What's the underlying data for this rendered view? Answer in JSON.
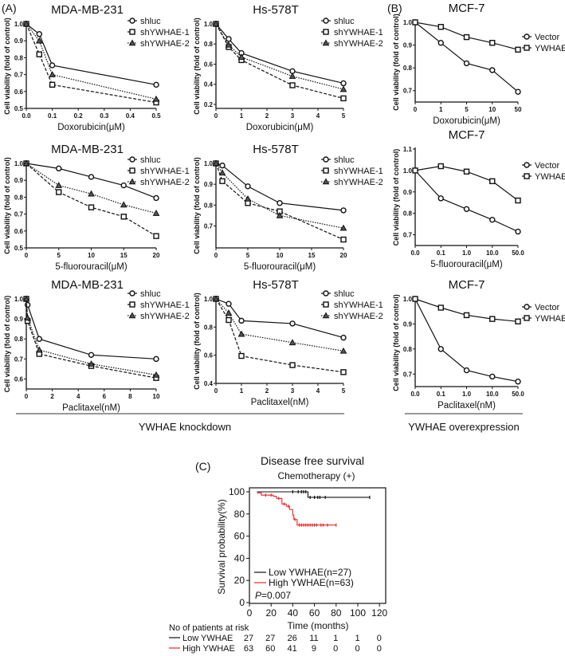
{
  "panel_labels": {
    "a": "(A)",
    "b": "(B)",
    "c": "(C)"
  },
  "group_labels": {
    "knockdown": "YWHAE knockdown",
    "overexpression": "YWHAE overexpression"
  },
  "chart_data": [
    {
      "type": "line",
      "title": "MDA-MB-231",
      "xlabel": "Doxorubicin(μM)",
      "ylabel": "Cell viability (fold of control)",
      "x": [
        0,
        0.05,
        0.1,
        0.5
      ],
      "xlim": [
        0,
        0.5
      ],
      "xticks": [
        "0.0",
        "0.1",
        "0.2",
        "0.3",
        "0.4",
        "0.5"
      ],
      "xtick_values": [
        0,
        0.1,
        0.2,
        0.3,
        0.4,
        0.5
      ],
      "ylim": [
        0.5,
        1.0
      ],
      "yticks": [
        "0.5",
        "0.6",
        "0.7",
        "0.8",
        "0.9",
        "1.0"
      ],
      "ytick_values": [
        0.5,
        0.6,
        0.7,
        0.8,
        0.9,
        1.0
      ],
      "series": [
        {
          "name": "shluc",
          "values": [
            1,
            0.94,
            0.755,
            0.64
          ]
        },
        {
          "name": "shYWHAE-1",
          "values": [
            1,
            0.82,
            0.64,
            0.535
          ]
        },
        {
          "name": "shYWHAE-2",
          "values": [
            1,
            0.9,
            0.7,
            0.555
          ]
        }
      ]
    },
    {
      "type": "line",
      "title": "Hs-578T",
      "xlabel": "Doxorubicin(μM)",
      "ylabel": "Cell viability (fold of control)",
      "x": [
        0,
        0.5,
        1,
        3,
        5
      ],
      "xlim": [
        0,
        5
      ],
      "xticks": [
        "0",
        "1",
        "2",
        "3",
        "4",
        "5"
      ],
      "xtick_values": [
        0,
        1,
        2,
        3,
        4,
        5
      ],
      "ylim": [
        0.16,
        1.0
      ],
      "yticks": [
        "0.2",
        "0.4",
        "0.6",
        "0.8",
        "1.0"
      ],
      "ytick_values": [
        0.2,
        0.4,
        0.6,
        0.8,
        1.0
      ],
      "series": [
        {
          "name": "shluc",
          "values": [
            1,
            0.85,
            0.71,
            0.53,
            0.41
          ]
        },
        {
          "name": "shYWHAE-1",
          "values": [
            1,
            0.77,
            0.64,
            0.39,
            0.26
          ]
        },
        {
          "name": "shYWHAE-2",
          "values": [
            1,
            0.79,
            0.67,
            0.48,
            0.35
          ]
        }
      ]
    },
    {
      "type": "line",
      "title": "MCF-7",
      "xlabel": "Doxorubicin(μM)",
      "ylabel": "Cell viability (fold of control)",
      "categorical": true,
      "xticks": [
        "0",
        "1",
        "5",
        "10",
        "50"
      ],
      "ylim": [
        0.65,
        1.0
      ],
      "yticks": [
        "0.7",
        "0.8",
        "0.9",
        "1.0"
      ],
      "ytick_values": [
        0.7,
        0.8,
        0.9,
        1.0
      ],
      "series": [
        {
          "name": "Vector",
          "values": [
            1,
            0.91,
            0.82,
            0.79,
            0.695
          ]
        },
        {
          "name": "YWHAE",
          "values": [
            1,
            0.98,
            0.935,
            0.91,
            0.88
          ]
        }
      ]
    },
    {
      "type": "line",
      "title": "MDA-MB-231",
      "xlabel": "5-fluorouracil(μM)",
      "ylabel": "Cell viability (fold of control)",
      "x": [
        0,
        5,
        10,
        15,
        20
      ],
      "xlim": [
        0,
        20
      ],
      "xticks": [
        "0",
        "5",
        "10",
        "15",
        "20"
      ],
      "xtick_values": [
        0,
        5,
        10,
        15,
        20
      ],
      "ylim": [
        0.5,
        1.0
      ],
      "yticks": [
        "0.5",
        "0.6",
        "0.7",
        "0.8",
        "0.9",
        "1.0"
      ],
      "ytick_values": [
        0.5,
        0.6,
        0.7,
        0.8,
        0.9,
        1.0
      ],
      "series": [
        {
          "name": "shluc",
          "values": [
            1,
            0.97,
            0.92,
            0.87,
            0.795
          ]
        },
        {
          "name": "shYWHAE-1",
          "values": [
            1,
            0.83,
            0.74,
            0.685,
            0.57
          ]
        },
        {
          "name": "shYWHAE-2",
          "values": [
            1,
            0.87,
            0.82,
            0.755,
            0.705
          ]
        }
      ]
    },
    {
      "type": "line",
      "title": "Hs-578T",
      "xlabel": "5-fluorouracil(μM)",
      "ylabel": "Cell viability (fold of control)",
      "x": [
        0,
        1,
        5,
        10,
        20
      ],
      "xlim": [
        0,
        20
      ],
      "xticks": [
        "0",
        "5",
        "10",
        "15",
        "20"
      ],
      "xtick_values": [
        0,
        5,
        10,
        15,
        20
      ],
      "ylim": [
        0.595,
        1.0
      ],
      "yticks": [
        "0.7",
        "0.8",
        "0.9",
        "1.0"
      ],
      "ytick_values": [
        0.7,
        0.8,
        0.9,
        1.0
      ],
      "series": [
        {
          "name": "shluc",
          "values": [
            1,
            0.99,
            0.89,
            0.81,
            0.775
          ]
        },
        {
          "name": "shYWHAE-1",
          "values": [
            1,
            0.915,
            0.81,
            0.77,
            0.635
          ]
        },
        {
          "name": "shYWHAE-2",
          "values": [
            1,
            0.955,
            0.83,
            0.75,
            0.69
          ]
        }
      ]
    },
    {
      "type": "line",
      "title": "MCF-7",
      "xlabel": "5-fluorouracil(μM)",
      "ylabel": "Cell viability (fold of control)",
      "categorical": true,
      "xticks": [
        "0.0",
        "0.1",
        "1.0",
        "10.0",
        "50.0"
      ],
      "ylim": [
        0.65,
        1.1
      ],
      "yticks": [
        "0.7",
        "0.8",
        "0.9",
        "1.0",
        "1.1"
      ],
      "ytick_values": [
        0.7,
        0.8,
        0.9,
        1.0,
        1.1
      ],
      "series": [
        {
          "name": "Vector",
          "values": [
            1,
            0.87,
            0.82,
            0.77,
            0.715
          ]
        },
        {
          "name": "YWHAE",
          "values": [
            1,
            1.02,
            0.995,
            0.95,
            0.86
          ]
        }
      ]
    },
    {
      "type": "line",
      "title": "MDA-MB-231",
      "xlabel": "Paclitaxel(nM)",
      "ylabel": "Cell viability (fold of control)",
      "x": [
        0,
        0.1,
        1,
        5,
        10
      ],
      "xlim": [
        0,
        10
      ],
      "xticks": [
        "0",
        "2",
        "4",
        "6",
        "8",
        "10"
      ],
      "xtick_values": [
        0,
        2,
        4,
        6,
        8,
        10
      ],
      "ylim": [
        0.55,
        1.0
      ],
      "yticks": [
        "0.6",
        "0.7",
        "0.8",
        "0.9",
        "1.0"
      ],
      "ytick_values": [
        0.6,
        0.7,
        0.8,
        0.9,
        1.0
      ],
      "series": [
        {
          "name": "shluc",
          "values": [
            1,
            0.97,
            0.8,
            0.72,
            0.7
          ]
        },
        {
          "name": "shYWHAE-1",
          "values": [
            1,
            0.89,
            0.725,
            0.665,
            0.605
          ]
        },
        {
          "name": "shYWHAE-2",
          "values": [
            1,
            0.905,
            0.745,
            0.675,
            0.62
          ]
        }
      ]
    },
    {
      "type": "line",
      "title": "Hs-578T",
      "xlabel": "Paclitaxel(nM)",
      "ylabel": "Cell viability (fold of control)",
      "x": [
        0,
        0.5,
        1,
        3,
        5
      ],
      "xlim": [
        0,
        5
      ],
      "xticks": [
        "0",
        "1",
        "2",
        "3",
        "4",
        "5"
      ],
      "xtick_values": [
        0,
        1,
        2,
        3,
        4,
        5
      ],
      "ylim": [
        0.4,
        1.0
      ],
      "yticks": [
        "0.4",
        "0.6",
        "0.8",
        "1.0"
      ],
      "ytick_values": [
        0.4,
        0.6,
        0.8,
        1.0
      ],
      "series": [
        {
          "name": "shluc",
          "values": [
            1,
            0.965,
            0.845,
            0.825,
            0.725
          ]
        },
        {
          "name": "shYWHAE-1",
          "values": [
            1,
            0.85,
            0.595,
            0.53,
            0.48
          ]
        },
        {
          "name": "shYWHAE-2",
          "values": [
            1,
            0.9,
            0.75,
            0.69,
            0.63
          ]
        }
      ]
    },
    {
      "type": "line",
      "title": "MCF-7",
      "xlabel": "Paclitaxel(nM)",
      "ylabel": "Cell viability (fold of control)",
      "categorical": true,
      "xticks": [
        "0.0",
        "0.1",
        "1.0",
        "10.0",
        "50.0"
      ],
      "ylim": [
        0.65,
        1.0
      ],
      "yticks": [
        "0.7",
        "0.8",
        "0.9",
        "1.0"
      ],
      "ytick_values": [
        0.7,
        0.8,
        0.9,
        1.0
      ],
      "series": [
        {
          "name": "Vector",
          "values": [
            1,
            0.8,
            0.715,
            0.69,
            0.67
          ]
        },
        {
          "name": "YWHAE",
          "values": [
            1,
            0.965,
            0.935,
            0.92,
            0.91
          ]
        }
      ]
    },
    {
      "type": "line",
      "subtype": "kaplan-meier",
      "title": "Disease free survival",
      "subtitle": "Chemotherapy (+)",
      "xlabel": "Time (months)",
      "ylabel": "Survival probability(%)",
      "xlim": [
        0,
        120
      ],
      "xticks": [
        "0",
        "20",
        "40",
        "60",
        "80",
        "100",
        "120"
      ],
      "xtick_values": [
        0,
        20,
        40,
        60,
        80,
        100,
        120
      ],
      "ylim": [
        0,
        100
      ],
      "yticks": [
        "0",
        "20",
        "40",
        "60",
        "80",
        "100"
      ],
      "ytick_values": [
        0,
        20,
        40,
        60,
        80,
        100
      ],
      "series": [
        {
          "name": "Low YWHAE(n=27)",
          "color": "#111111",
          "steps": [
            [
              7,
              100
            ],
            [
              54,
              100
            ],
            [
              54,
              95
            ],
            [
              111,
              95
            ]
          ],
          "censor": [
            40,
            45,
            48,
            50,
            52,
            56,
            60,
            63,
            65,
            70,
            111
          ]
        },
        {
          "name": "High YWHAE(n=63)",
          "color": "#e8272a",
          "steps": [
            [
              7,
              99
            ],
            [
              11,
              99
            ],
            [
              11,
              97
            ],
            [
              22,
              97
            ],
            [
              22,
              96
            ],
            [
              25,
              96
            ],
            [
              25,
              94
            ],
            [
              30,
              94
            ],
            [
              30,
              89
            ],
            [
              34,
              89
            ],
            [
              34,
              87
            ],
            [
              37,
              87
            ],
            [
              37,
              84
            ],
            [
              40,
              84
            ],
            [
              40,
              79
            ],
            [
              41,
              79
            ],
            [
              41,
              75
            ],
            [
              44,
              75
            ],
            [
              44,
              70
            ],
            [
              80,
              70
            ]
          ],
          "censor": [
            15,
            20,
            27,
            32,
            36,
            42,
            46,
            48,
            50,
            52,
            54,
            56,
            58,
            60,
            62,
            66,
            68,
            72,
            80
          ]
        }
      ],
      "pvalue_label": "P",
      "pvalue": "=0.007",
      "risk_table": {
        "title": "No of patients at risk",
        "rows": [
          {
            "label": "Low YWHAE",
            "color": "#111111",
            "values": [
              "27",
              "27",
              "26",
              "11",
              "1",
              "1",
              "0"
            ]
          },
          {
            "label": "High YWHAE",
            "color": "#e8272a",
            "values": [
              "63",
              "60",
              "41",
              "9",
              "0",
              "0",
              "0"
            ]
          }
        ]
      }
    }
  ]
}
